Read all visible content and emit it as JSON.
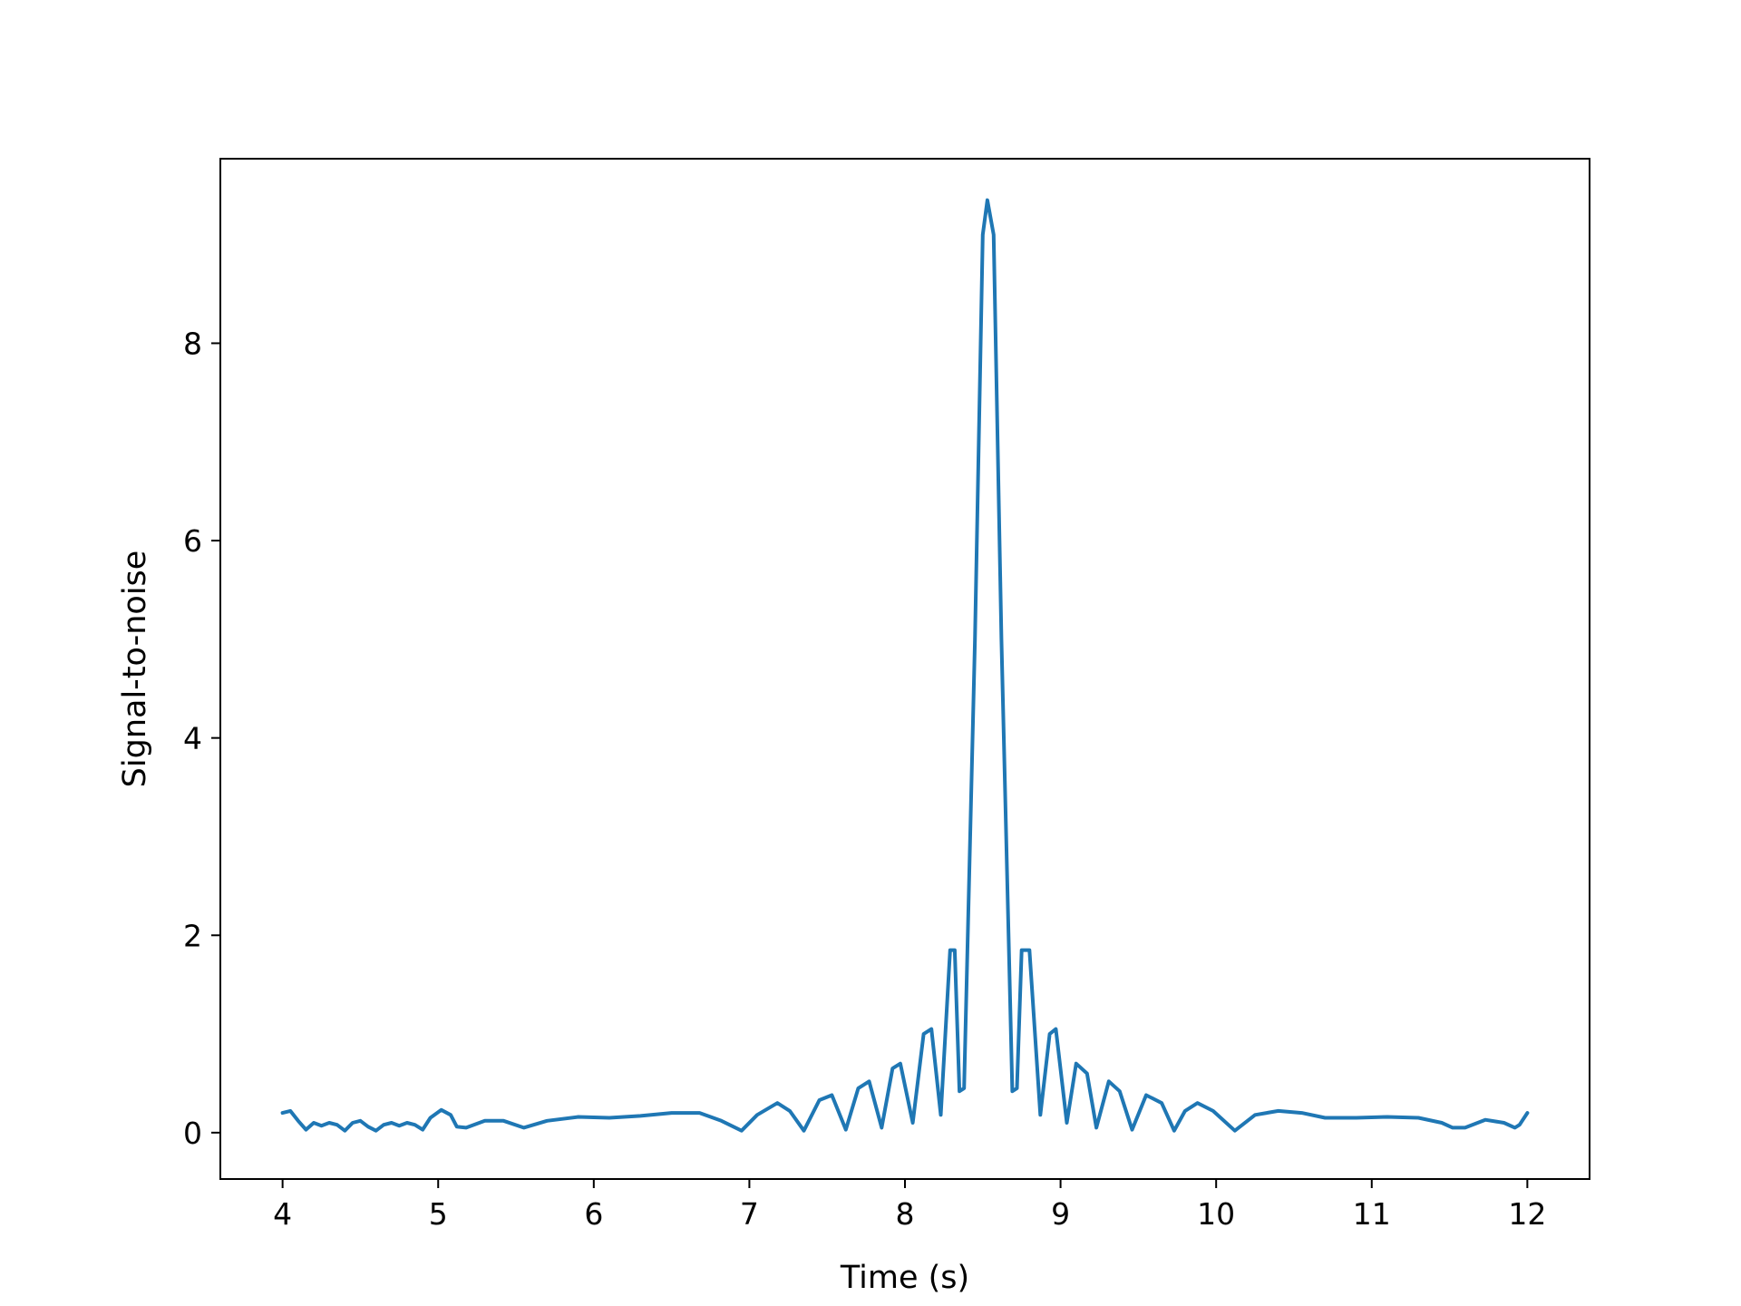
{
  "chart_data": {
    "type": "line",
    "title": "",
    "xlabel": "Time (s)",
    "ylabel": "Signal-to-noise",
    "xlim": [
      3.6,
      12.4
    ],
    "ylim": [
      -0.47,
      9.87
    ],
    "xticks": [
      4,
      5,
      6,
      7,
      8,
      9,
      10,
      11,
      12
    ],
    "xtick_labels": [
      "4",
      "5",
      "6",
      "7",
      "8",
      "9",
      "10",
      "11",
      "12"
    ],
    "yticks": [
      0,
      2,
      4,
      6,
      8
    ],
    "ytick_labels": [
      "0",
      "2",
      "4",
      "6",
      "8"
    ],
    "grid": false,
    "legend": "none",
    "series": [
      {
        "color": "#1f77b4",
        "x": [
          4.0,
          4.05,
          4.1,
          4.15,
          4.2,
          4.25,
          4.3,
          4.35,
          4.4,
          4.45,
          4.5,
          4.55,
          4.6,
          4.65,
          4.7,
          4.75,
          4.8,
          4.85,
          4.9,
          4.95,
          5.02,
          5.08,
          5.12,
          5.18,
          5.3,
          5.42,
          5.55,
          5.7,
          5.9,
          6.1,
          6.3,
          6.5,
          6.68,
          6.82,
          6.95,
          7.05,
          7.18,
          7.26,
          7.35,
          7.45,
          7.53,
          7.62,
          7.7,
          7.77,
          7.85,
          7.92,
          7.97,
          8.05,
          8.12,
          8.17,
          8.23,
          8.29,
          8.32,
          8.35,
          8.38,
          8.45,
          8.5,
          8.53,
          8.57,
          8.62,
          8.69,
          8.72,
          8.75,
          8.8,
          8.87,
          8.93,
          8.97,
          9.04,
          9.1,
          9.17,
          9.23,
          9.31,
          9.38,
          9.46,
          9.55,
          9.65,
          9.73,
          9.8,
          9.88,
          9.98,
          10.12,
          10.25,
          10.4,
          10.55,
          10.7,
          10.9,
          11.1,
          11.3,
          11.45,
          11.52,
          11.6,
          11.73,
          11.85,
          11.92,
          11.95,
          12.0
        ],
        "values": [
          0.2,
          0.22,
          0.12,
          0.03,
          0.1,
          0.07,
          0.1,
          0.08,
          0.02,
          0.1,
          0.12,
          0.06,
          0.02,
          0.08,
          0.1,
          0.07,
          0.1,
          0.08,
          0.03,
          0.15,
          0.23,
          0.18,
          0.06,
          0.05,
          0.12,
          0.12,
          0.05,
          0.12,
          0.16,
          0.15,
          0.17,
          0.2,
          0.2,
          0.12,
          0.02,
          0.18,
          0.3,
          0.22,
          0.02,
          0.33,
          0.38,
          0.03,
          0.45,
          0.52,
          0.05,
          0.65,
          0.7,
          0.1,
          1.0,
          1.05,
          0.18,
          1.85,
          1.85,
          0.42,
          0.45,
          5.0,
          9.1,
          9.45,
          9.1,
          5.0,
          0.42,
          0.45,
          1.85,
          1.85,
          0.18,
          1.0,
          1.05,
          0.1,
          0.7,
          0.6,
          0.05,
          0.52,
          0.42,
          0.03,
          0.38,
          0.3,
          0.02,
          0.22,
          0.3,
          0.22,
          0.02,
          0.18,
          0.22,
          0.2,
          0.15,
          0.15,
          0.16,
          0.15,
          0.1,
          0.05,
          0.05,
          0.13,
          0.1,
          0.05,
          0.08,
          0.2
        ]
      }
    ]
  }
}
